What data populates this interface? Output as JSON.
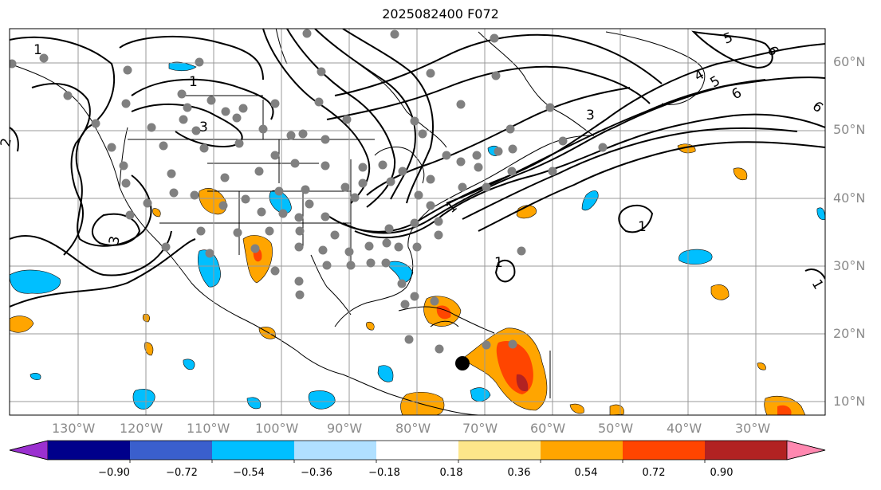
{
  "title": "2025082400 F072",
  "lon_labels": [
    "130°W",
    "120°W",
    "110°W",
    "100°W",
    "90°W",
    "80°W",
    "70°W",
    "60°W",
    "50°W",
    "40°W",
    "30°W"
  ],
  "lat_labels": [
    "60°N",
    "50°N",
    "40°N",
    "30°N",
    "20°N",
    "10°N"
  ],
  "colorbar": {
    "ticks": [
      "−0.90",
      "−0.72",
      "−0.54",
      "−0.36",
      "−0.18",
      "0.18",
      "0.36",
      "0.54",
      "0.72",
      "0.90"
    ],
    "colors": [
      "#9b30d0",
      "#00008b",
      "#3a5fcd",
      "#00bfff",
      "#b0e0ff",
      "#ffffff",
      "#fde68a",
      "#ffa500",
      "#ff4500",
      "#b22222",
      "#ff88b0"
    ]
  },
  "contour_labels": [
    "1",
    "3",
    "5",
    "6",
    "4",
    "5",
    "6",
    "1",
    "1",
    "3",
    "1",
    "3",
    "1",
    "6",
    "2",
    "1"
  ]
}
